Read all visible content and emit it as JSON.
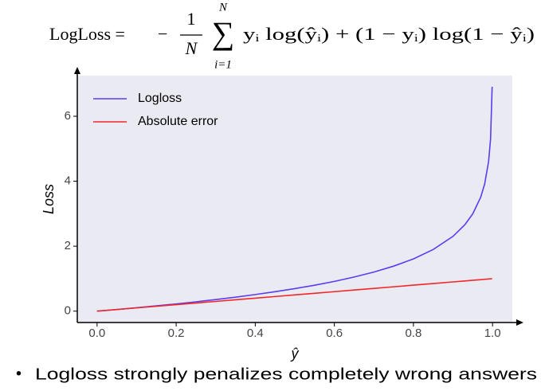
{
  "formula": {
    "lhs": "LogLoss =",
    "minus": "−",
    "frac_num": "1",
    "frac_den": "N",
    "sum": "∑",
    "sum_top": "N",
    "sum_bottom": "i=1",
    "body": "yᵢ log(ŷᵢ) + (1 − yᵢ) log(1 − ŷᵢ)"
  },
  "chart_data": {
    "type": "line",
    "xlabel": "ŷ",
    "ylabel": "Loss",
    "x": [
      0,
      0.05,
      0.1,
      0.15,
      0.2,
      0.25,
      0.3,
      0.35,
      0.4,
      0.45,
      0.5,
      0.55,
      0.6,
      0.65,
      0.7,
      0.75,
      0.8,
      0.85,
      0.9,
      0.93,
      0.95,
      0.97,
      0.98,
      0.99,
      0.995,
      0.999
    ],
    "series": [
      {
        "name": "Logloss",
        "color": "#5b3cf2",
        "values": [
          0,
          0.0513,
          0.1054,
          0.1625,
          0.2231,
          0.2877,
          0.3567,
          0.4308,
          0.5108,
          0.5978,
          0.6931,
          0.7985,
          0.9163,
          1.0498,
          1.204,
          1.3863,
          1.6094,
          1.8971,
          2.3026,
          2.6593,
          2.9957,
          3.5066,
          3.912,
          4.6052,
          5.2983,
          6.9078
        ]
      },
      {
        "name": "Absolute error",
        "color": "#f0282a",
        "values": [
          0,
          0.05,
          0.1,
          0.15,
          0.2,
          0.25,
          0.3,
          0.35,
          0.4,
          0.45,
          0.5,
          0.55,
          0.6,
          0.65,
          0.7,
          0.75,
          0.8,
          0.85,
          0.9,
          0.93,
          0.95,
          0.97,
          0.98,
          0.99,
          0.995,
          0.999
        ]
      }
    ],
    "xlim": [
      -0.05,
      1.05
    ],
    "ylim": [
      -0.35,
      7.25
    ],
    "xticks": [
      {
        "value": 0,
        "label": "0.0"
      },
      0.2,
      0.4,
      0.6,
      0.8,
      {
        "value": 1,
        "label": "1.0"
      }
    ],
    "yticks": [
      0,
      2,
      4,
      6
    ],
    "legend": "upper left",
    "background": "#eaeaf2",
    "grid": false
  },
  "bullet": {
    "marker": "•",
    "text": "Logloss strongly penalizes completely wrong answers"
  }
}
